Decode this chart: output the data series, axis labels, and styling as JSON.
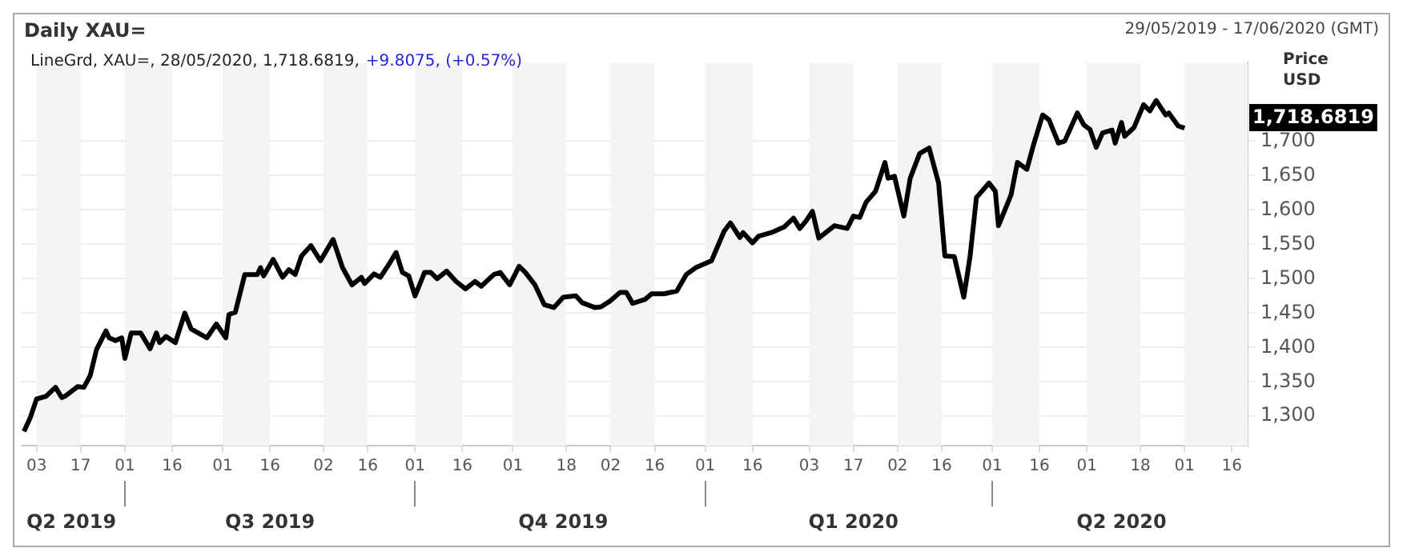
{
  "chart_data": {
    "type": "line",
    "title": "Daily XAU=",
    "subtitle": "29/05/2019 - 17/06/2020 (GMT)",
    "ylabel": "Price USD",
    "annotations": [
      "LineGrd, XAU=, 28/05/2020, 1,718.6819,",
      "+9.8075, (+0.57%)",
      "1,718.6819"
    ],
    "series": [
      {
        "color": "#000000",
        "x": [
          "2019-05-30",
          "2019-06-01",
          "2019-06-03",
          "2019-06-06",
          "2019-06-09",
          "2019-06-11",
          "2019-06-12",
          "2019-06-16",
          "2019-06-18",
          "2019-06-20",
          "2019-06-22",
          "2019-06-25",
          "2019-06-26",
          "2019-06-28",
          "2019-06-30",
          "2019-07-01",
          "2019-07-03",
          "2019-07-06",
          "2019-07-09",
          "2019-07-11",
          "2019-07-12",
          "2019-07-14",
          "2019-07-17",
          "2019-07-20",
          "2019-07-22",
          "2019-07-25",
          "2019-07-27",
          "2019-07-30",
          "2019-08-02",
          "2019-08-03",
          "2019-08-05",
          "2019-08-08",
          "2019-08-12",
          "2019-08-13",
          "2019-08-14",
          "2019-08-17",
          "2019-08-20",
          "2019-08-22",
          "2019-08-24",
          "2019-08-26",
          "2019-08-29",
          "2019-09-01",
          "2019-09-05",
          "2019-09-08",
          "2019-09-11",
          "2019-09-14",
          "2019-09-15",
          "2019-09-18",
          "2019-09-20",
          "2019-09-23",
          "2019-09-25",
          "2019-09-27",
          "2019-09-29",
          "2019-10-01",
          "2019-10-04",
          "2019-10-06",
          "2019-10-08",
          "2019-10-11",
          "2019-10-14",
          "2019-10-17",
          "2019-10-20",
          "2019-10-22",
          "2019-10-26",
          "2019-10-28",
          "2019-10-31",
          "2019-11-03",
          "2019-11-05",
          "2019-11-08",
          "2019-11-11",
          "2019-11-14",
          "2019-11-17",
          "2019-11-21",
          "2019-11-23",
          "2019-11-27",
          "2019-11-29",
          "2019-12-02",
          "2019-12-05",
          "2019-12-07",
          "2019-12-09",
          "2019-12-13",
          "2019-12-15",
          "2019-12-19",
          "2019-12-23",
          "2019-12-26",
          "2019-12-29",
          "2020-01-03",
          "2020-01-07",
          "2020-01-09",
          "2020-01-12",
          "2020-01-13",
          "2020-01-16",
          "2020-01-18",
          "2020-01-22",
          "2020-01-26",
          "2020-01-29",
          "2020-01-31",
          "2020-02-02",
          "2020-02-04",
          "2020-02-06",
          "2020-02-11",
          "2020-02-15",
          "2020-02-17",
          "2020-02-19",
          "2020-02-21",
          "2020-02-24",
          "2020-02-27",
          "2020-02-28",
          "2020-03-01",
          "2020-03-04",
          "2020-03-06",
          "2020-03-09",
          "2020-03-12",
          "2020-03-15",
          "2020-03-17",
          "2020-03-20",
          "2020-03-23",
          "2020-03-25",
          "2020-03-27",
          "2020-03-31",
          "2020-04-02",
          "2020-04-03",
          "2020-04-07",
          "2020-04-09",
          "2020-04-12",
          "2020-04-14",
          "2020-04-17",
          "2020-04-19",
          "2020-04-22",
          "2020-04-24",
          "2020-04-28",
          "2020-04-30",
          "2020-05-02",
          "2020-05-04",
          "2020-05-06",
          "2020-05-09",
          "2020-05-10",
          "2020-05-12",
          "2020-05-13",
          "2020-05-16",
          "2020-05-19",
          "2020-05-21",
          "2020-05-23",
          "2020-05-26",
          "2020-05-27",
          "2020-05-30",
          "2020-06-01"
        ],
        "values": [
          1278,
          1298,
          1325,
          1329,
          1342,
          1327,
          1329,
          1343,
          1342,
          1359,
          1397,
          1424,
          1414,
          1410,
          1414,
          1384,
          1421,
          1421,
          1398,
          1421,
          1407,
          1416,
          1407,
          1450,
          1427,
          1419,
          1414,
          1434,
          1414,
          1448,
          1451,
          1506,
          1506,
          1516,
          1504,
          1528,
          1502,
          1513,
          1506,
          1533,
          1548,
          1526,
          1557,
          1516,
          1491,
          1502,
          1493,
          1507,
          1502,
          1523,
          1538,
          1509,
          1504,
          1475,
          1509,
          1509,
          1500,
          1511,
          1496,
          1485,
          1496,
          1489,
          1506,
          1509,
          1491,
          1518,
          1509,
          1491,
          1462,
          1458,
          1473,
          1475,
          1465,
          1458,
          1459,
          1468,
          1480,
          1480,
          1464,
          1470,
          1478,
          1478,
          1482,
          1506,
          1516,
          1526,
          1569,
          1581,
          1560,
          1567,
          1552,
          1562,
          1567,
          1575,
          1588,
          1573,
          1584,
          1598,
          1559,
          1577,
          1573,
          1591,
          1589,
          1611,
          1627,
          1669,
          1646,
          1649,
          1591,
          1646,
          1682,
          1690,
          1639,
          1533,
          1532,
          1473,
          1533,
          1618,
          1639,
          1627,
          1577,
          1622,
          1669,
          1659,
          1693,
          1738,
          1731,
          1697,
          1700,
          1741,
          1724,
          1717,
          1691,
          1712,
          1716,
          1697,
          1727,
          1707,
          1720,
          1753,
          1744,
          1759,
          1738,
          1741,
          1722,
          1719
        ]
      }
    ],
    "xlim": [
      "2019-05-29",
      "2020-06-21"
    ],
    "xticks": [
      {
        "value": "2019-06-03",
        "label": "03"
      },
      {
        "value": "2019-06-17",
        "label": "17"
      },
      {
        "value": "2019-07-01",
        "label": "01"
      },
      {
        "value": "2019-07-16",
        "label": "16"
      },
      {
        "value": "2019-08-01",
        "label": "01"
      },
      {
        "value": "2019-08-16",
        "label": "16"
      },
      {
        "value": "2019-09-02",
        "label": "02"
      },
      {
        "value": "2019-09-16",
        "label": "16"
      },
      {
        "value": "2019-10-01",
        "label": "01"
      },
      {
        "value": "2019-10-16",
        "label": "16"
      },
      {
        "value": "2019-11-01",
        "label": "01"
      },
      {
        "value": "2019-11-18",
        "label": "18"
      },
      {
        "value": "2019-12-02",
        "label": "02"
      },
      {
        "value": "2019-12-16",
        "label": "16"
      },
      {
        "value": "2020-01-01",
        "label": "01"
      },
      {
        "value": "2020-01-16",
        "label": "16"
      },
      {
        "value": "2020-02-03",
        "label": "03"
      },
      {
        "value": "2020-02-17",
        "label": "17"
      },
      {
        "value": "2020-03-02",
        "label": "02"
      },
      {
        "value": "2020-03-16",
        "label": "16"
      },
      {
        "value": "2020-04-01",
        "label": "01"
      },
      {
        "value": "2020-04-16",
        "label": "16"
      },
      {
        "value": "2020-05-01",
        "label": "01"
      },
      {
        "value": "2020-05-18",
        "label": "18"
      },
      {
        "value": "2020-06-01",
        "label": "01"
      },
      {
        "value": "2020-06-16",
        "label": "16"
      }
    ],
    "x2lim": [
      "2019-05-29",
      "2020-06-21"
    ],
    "x2ticks": [
      {
        "value": "2019-06-14",
        "label": "Q2 2019"
      },
      {
        "value": "2019-07-01",
        "label": null
      },
      {
        "value": "2019-08-16",
        "label": "Q3 2019"
      },
      {
        "value": "2019-10-01",
        "label": null
      },
      {
        "value": "2019-11-17",
        "label": "Q4 2019"
      },
      {
        "value": "2020-01-01",
        "label": null
      },
      {
        "value": "2020-02-17",
        "label": "Q1 2020"
      },
      {
        "value": "2020-04-01",
        "label": null
      },
      {
        "value": "2020-05-12",
        "label": "Q2 2020"
      }
    ],
    "ylim": [
      1257,
      1814
    ],
    "yticks": [
      {
        "value": 1300,
        "label": "1,300"
      },
      {
        "value": 1350,
        "label": "1,350"
      },
      {
        "value": 1400,
        "label": "1,400"
      },
      {
        "value": 1450,
        "label": "1,450"
      },
      {
        "value": 1500,
        "label": "1,500"
      },
      {
        "value": 1550,
        "label": "1,550"
      },
      {
        "value": 1600,
        "label": "1,600"
      },
      {
        "value": 1650,
        "label": "1,650"
      },
      {
        "value": 1700,
        "label": "1,700"
      }
    ],
    "grid": "y",
    "bands": [
      {
        "axis": "x",
        "from": "2019-06-03",
        "to": "2019-06-17",
        "color": "#f4f4f4"
      },
      {
        "axis": "x",
        "from": "2019-07-01",
        "to": "2019-07-16",
        "color": "#f4f4f4"
      },
      {
        "axis": "x",
        "from": "2019-08-01",
        "to": "2019-08-16",
        "color": "#f4f4f4"
      },
      {
        "axis": "x",
        "from": "2019-09-02",
        "to": "2019-09-16",
        "color": "#f4f4f4"
      },
      {
        "axis": "x",
        "from": "2019-10-01",
        "to": "2019-10-16",
        "color": "#f4f4f4"
      },
      {
        "axis": "x",
        "from": "2019-11-01",
        "to": "2019-11-18",
        "color": "#f4f4f4"
      },
      {
        "axis": "x",
        "from": "2019-12-02",
        "to": "2019-12-16",
        "color": "#f4f4f4"
      },
      {
        "axis": "x",
        "from": "2020-01-01",
        "to": "2020-01-16",
        "color": "#f4f4f4"
      },
      {
        "axis": "x",
        "from": "2020-02-03",
        "to": "2020-02-17",
        "color": "#f4f4f4"
      },
      {
        "axis": "x",
        "from": "2020-03-02",
        "to": "2020-03-16",
        "color": "#f4f4f4"
      },
      {
        "axis": "x",
        "from": "2020-04-01",
        "to": "2020-04-16",
        "color": "#f4f4f4"
      },
      {
        "axis": "x",
        "from": "2020-05-01",
        "to": "2020-05-18",
        "color": "#f4f4f4"
      },
      {
        "axis": "x",
        "from": "2020-06-01",
        "to": "2020-06-21",
        "color": "#f4f4f4"
      }
    ]
  }
}
